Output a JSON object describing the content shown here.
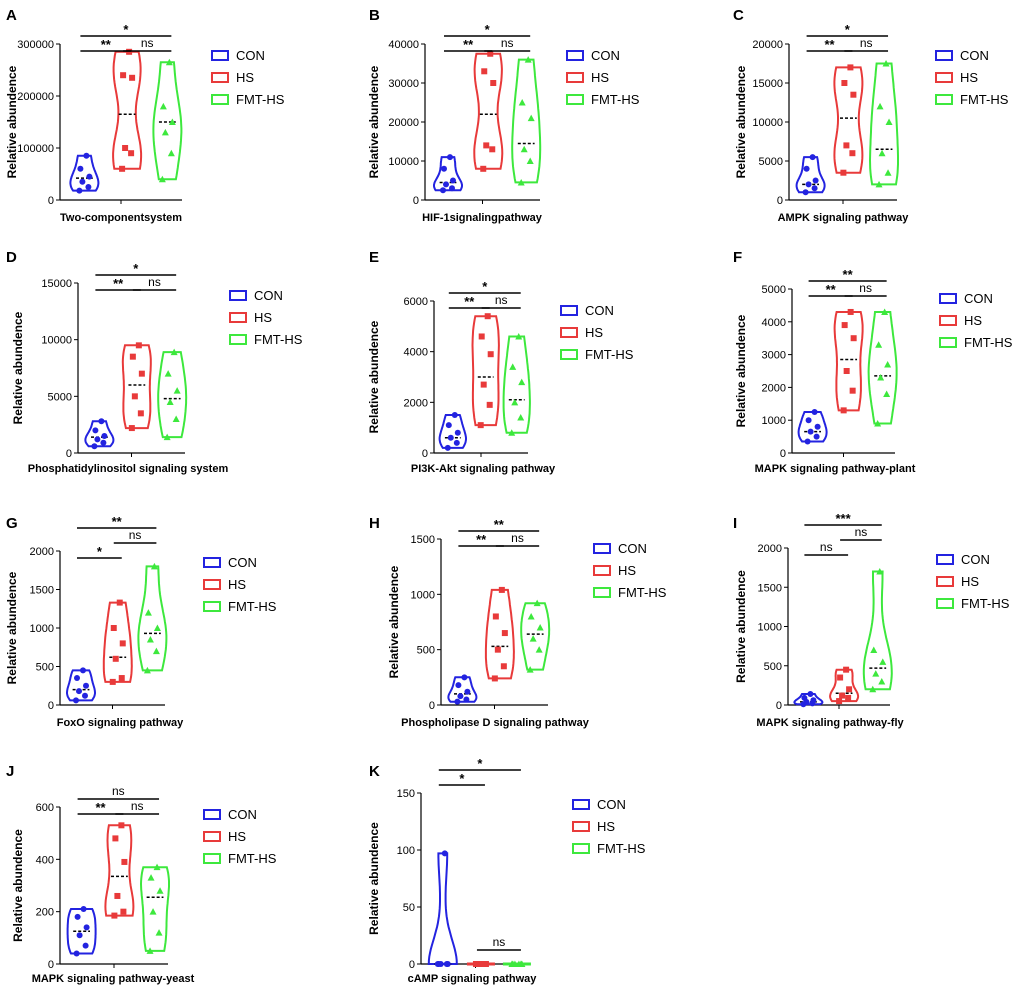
{
  "colors": {
    "CON": "#2323e0",
    "HS": "#e83a3a",
    "FMT-HS": "#3de83d"
  },
  "legend": [
    "CON",
    "HS",
    "FMT-HS"
  ],
  "ylabel": "Relative abundence",
  "chart_data": [
    {
      "panel": "A",
      "type": "violin",
      "xlabel": "Two-componentsystem",
      "ylim": [
        0,
        300000
      ],
      "yticks": [
        0,
        100000,
        200000,
        300000
      ],
      "groups": [
        {
          "name": "CON",
          "marker": "circle",
          "median": 42000,
          "values": [
            18000,
            25000,
            35000,
            45000,
            60000,
            85000
          ]
        },
        {
          "name": "HS",
          "marker": "square",
          "median": 165000,
          "values": [
            60000,
            90000,
            100000,
            235000,
            240000,
            285000
          ]
        },
        {
          "name": "FMT-HS",
          "marker": "triangle",
          "median": 150000,
          "values": [
            40000,
            90000,
            130000,
            150000,
            180000,
            265000
          ]
        }
      ],
      "brackets": [
        {
          "from": 0,
          "to": 2,
          "label": "*",
          "level": 1
        },
        {
          "from": 0,
          "to": 1,
          "label": "**",
          "level": 0
        },
        {
          "from": 1,
          "to": 2,
          "label": "ns",
          "level": 0
        }
      ]
    },
    {
      "panel": "B",
      "type": "violin",
      "xlabel": "HIF-1signalingpathway",
      "ylim": [
        0,
        40000
      ],
      "yticks": [
        0,
        10000,
        20000,
        30000,
        40000
      ],
      "groups": [
        {
          "name": "CON",
          "marker": "circle",
          "median": 4500,
          "values": [
            2500,
            3000,
            4000,
            5000,
            8000,
            11000
          ]
        },
        {
          "name": "HS",
          "marker": "square",
          "median": 22000,
          "values": [
            8000,
            13000,
            14000,
            30000,
            33000,
            37500
          ]
        },
        {
          "name": "FMT-HS",
          "marker": "triangle",
          "median": 14500,
          "values": [
            4500,
            10000,
            13000,
            21000,
            25000,
            36000
          ]
        }
      ],
      "brackets": [
        {
          "from": 0,
          "to": 2,
          "label": "*",
          "level": 1
        },
        {
          "from": 0,
          "to": 1,
          "label": "**",
          "level": 0
        },
        {
          "from": 1,
          "to": 2,
          "label": "ns",
          "level": 0
        }
      ]
    },
    {
      "panel": "C",
      "type": "violin",
      "xlabel": "AMPK signaling pathway",
      "ylim": [
        0,
        20000
      ],
      "yticks": [
        0,
        5000,
        10000,
        15000,
        20000
      ],
      "groups": [
        {
          "name": "CON",
          "marker": "circle",
          "median": 2000,
          "values": [
            1000,
            1500,
            2000,
            2500,
            4000,
            5500
          ]
        },
        {
          "name": "HS",
          "marker": "square",
          "median": 10500,
          "values": [
            3500,
            6000,
            7000,
            13500,
            15000,
            17000
          ]
        },
        {
          "name": "FMT-HS",
          "marker": "triangle",
          "median": 6500,
          "values": [
            2000,
            3500,
            6000,
            10000,
            12000,
            17500
          ]
        }
      ],
      "brackets": [
        {
          "from": 0,
          "to": 2,
          "label": "*",
          "level": 1
        },
        {
          "from": 0,
          "to": 1,
          "label": "**",
          "level": 0
        },
        {
          "from": 1,
          "to": 2,
          "label": "ns",
          "level": 0
        }
      ]
    },
    {
      "panel": "D",
      "type": "violin",
      "xlabel": "Phosphatidylinositol signaling system",
      "ylim": [
        0,
        15000
      ],
      "yticks": [
        0,
        5000,
        10000,
        15000
      ],
      "groups": [
        {
          "name": "CON",
          "marker": "circle",
          "median": 1400,
          "values": [
            600,
            900,
            1200,
            1500,
            2000,
            2800
          ]
        },
        {
          "name": "HS",
          "marker": "square",
          "median": 6000,
          "values": [
            2200,
            3500,
            5000,
            7000,
            8500,
            9500
          ]
        },
        {
          "name": "FMT-HS",
          "marker": "triangle",
          "median": 4800,
          "values": [
            1400,
            3000,
            4500,
            5500,
            7000,
            8900
          ]
        }
      ],
      "brackets": [
        {
          "from": 0,
          "to": 2,
          "label": "*",
          "level": 1
        },
        {
          "from": 0,
          "to": 1,
          "label": "**",
          "level": 0
        },
        {
          "from": 1,
          "to": 2,
          "label": "ns",
          "level": 0
        }
      ]
    },
    {
      "panel": "E",
      "type": "violin",
      "xlabel": "PI3K-Akt signaling pathway",
      "ylim": [
        0,
        6000
      ],
      "yticks": [
        0,
        2000,
        4000,
        6000
      ],
      "groups": [
        {
          "name": "CON",
          "marker": "circle",
          "median": 600,
          "values": [
            200,
            400,
            600,
            800,
            1100,
            1500
          ]
        },
        {
          "name": "HS",
          "marker": "square",
          "median": 3000,
          "values": [
            1100,
            1900,
            2700,
            3900,
            4600,
            5400
          ]
        },
        {
          "name": "FMT-HS",
          "marker": "triangle",
          "median": 2100,
          "values": [
            800,
            1400,
            2000,
            2800,
            3400,
            4600
          ]
        }
      ],
      "brackets": [
        {
          "from": 0,
          "to": 2,
          "label": "*",
          "level": 1
        },
        {
          "from": 0,
          "to": 1,
          "label": "**",
          "level": 0
        },
        {
          "from": 1,
          "to": 2,
          "label": "ns",
          "level": 0
        }
      ]
    },
    {
      "panel": "F",
      "type": "violin",
      "xlabel": "MAPK signaling pathway-plant",
      "ylim": [
        0,
        5000
      ],
      "yticks": [
        0,
        1000,
        2000,
        3000,
        4000,
        5000
      ],
      "groups": [
        {
          "name": "CON",
          "marker": "circle",
          "median": 650,
          "values": [
            350,
            500,
            650,
            800,
            1000,
            1250
          ]
        },
        {
          "name": "HS",
          "marker": "square",
          "median": 2850,
          "values": [
            1300,
            1900,
            2500,
            3500,
            3900,
            4300
          ]
        },
        {
          "name": "FMT-HS",
          "marker": "triangle",
          "median": 2350,
          "values": [
            900,
            1800,
            2300,
            2700,
            3300,
            4300
          ]
        }
      ],
      "brackets": [
        {
          "from": 0,
          "to": 2,
          "label": "**",
          "level": 1
        },
        {
          "from": 0,
          "to": 1,
          "label": "**",
          "level": 0
        },
        {
          "from": 1,
          "to": 2,
          "label": "ns",
          "level": 0
        }
      ]
    },
    {
      "panel": "G",
      "type": "violin",
      "xlabel": "FoxO signaling pathway",
      "ylim": [
        0,
        2000
      ],
      "yticks": [
        0,
        500,
        1000,
        1500,
        2000
      ],
      "groups": [
        {
          "name": "CON",
          "marker": "circle",
          "median": 200,
          "values": [
            60,
            120,
            180,
            250,
            350,
            450
          ]
        },
        {
          "name": "HS",
          "marker": "square",
          "median": 620,
          "values": [
            300,
            350,
            600,
            800,
            1000,
            1330
          ]
        },
        {
          "name": "FMT-HS",
          "marker": "triangle",
          "median": 930,
          "values": [
            450,
            700,
            850,
            1000,
            1200,
            1800
          ]
        }
      ],
      "brackets": [
        {
          "from": 0,
          "to": 2,
          "label": "**",
          "level": 2
        },
        {
          "from": 1,
          "to": 2,
          "label": "ns",
          "level": 1
        },
        {
          "from": 0,
          "to": 1,
          "label": "*",
          "level": 0
        }
      ]
    },
    {
      "panel": "H",
      "type": "violin",
      "xlabel": "Phospholipase D signaling pathway",
      "ylim": [
        0,
        1500
      ],
      "yticks": [
        0,
        500,
        1000,
        1500
      ],
      "groups": [
        {
          "name": "CON",
          "marker": "circle",
          "median": 100,
          "values": [
            30,
            50,
            80,
            120,
            180,
            250
          ]
        },
        {
          "name": "HS",
          "marker": "square",
          "median": 530,
          "values": [
            240,
            350,
            500,
            650,
            800,
            1040
          ]
        },
        {
          "name": "FMT-HS",
          "marker": "triangle",
          "median": 640,
          "values": [
            320,
            500,
            600,
            700,
            800,
            920
          ]
        }
      ],
      "brackets": [
        {
          "from": 0,
          "to": 2,
          "label": "**",
          "level": 1
        },
        {
          "from": 0,
          "to": 1,
          "label": "**",
          "level": 0
        },
        {
          "from": 1,
          "to": 2,
          "label": "ns",
          "level": 0
        }
      ]
    },
    {
      "panel": "I",
      "type": "violin",
      "xlabel": "MAPK signaling pathway-fly",
      "ylim": [
        0,
        2000
      ],
      "yticks": [
        0,
        500,
        1000,
        1500,
        2000
      ],
      "groups": [
        {
          "name": "CON",
          "marker": "circle",
          "median": 40,
          "values": [
            10,
            20,
            40,
            60,
            90,
            140
          ]
        },
        {
          "name": "HS",
          "marker": "square",
          "median": 150,
          "values": [
            50,
            90,
            120,
            200,
            350,
            450
          ]
        },
        {
          "name": "FMT-HS",
          "marker": "triangle",
          "median": 470,
          "values": [
            200,
            300,
            400,
            550,
            700,
            1700
          ]
        }
      ],
      "brackets": [
        {
          "from": 0,
          "to": 2,
          "label": "***",
          "level": 2
        },
        {
          "from": 1,
          "to": 2,
          "label": "ns",
          "level": 1
        },
        {
          "from": 0,
          "to": 1,
          "label": "ns",
          "level": 0
        }
      ]
    },
    {
      "panel": "J",
      "type": "violin",
      "xlabel": "MAPK signaling pathway-yeast",
      "ylim": [
        0,
        600
      ],
      "yticks": [
        0,
        200,
        400,
        600
      ],
      "groups": [
        {
          "name": "CON",
          "marker": "circle",
          "median": 125,
          "values": [
            40,
            70,
            110,
            140,
            180,
            210
          ]
        },
        {
          "name": "HS",
          "marker": "square",
          "median": 335,
          "values": [
            185,
            200,
            260,
            390,
            480,
            530
          ]
        },
        {
          "name": "FMT-HS",
          "marker": "triangle",
          "median": 255,
          "values": [
            50,
            120,
            200,
            280,
            330,
            370
          ]
        }
      ],
      "brackets": [
        {
          "from": 0,
          "to": 2,
          "label": "ns",
          "level": 1
        },
        {
          "from": 0,
          "to": 1,
          "label": "**",
          "level": 0
        },
        {
          "from": 1,
          "to": 2,
          "label": "ns",
          "level": 0
        }
      ]
    },
    {
      "panel": "K",
      "type": "violin",
      "xlabel": "cAMP signaling pathway",
      "ylim": [
        0,
        150
      ],
      "yticks": [
        0,
        50,
        100,
        150
      ],
      "groups": [
        {
          "name": "CON",
          "marker": "circle",
          "median": 0,
          "values": [
            0,
            0,
            0,
            0,
            0,
            97
          ]
        },
        {
          "name": "HS",
          "marker": "square",
          "median": 0,
          "values": [
            0,
            0,
            0,
            0,
            0,
            0
          ]
        },
        {
          "name": "FMT-HS",
          "marker": "triangle",
          "median": 0,
          "values": [
            0,
            0,
            0,
            0,
            0,
            0
          ]
        }
      ],
      "brackets": [
        {
          "from": 0,
          "to": 2,
          "label": "*",
          "level": 2
        },
        {
          "from": 0,
          "to": 1,
          "label": "*",
          "level": 1
        },
        {
          "from": 1,
          "to": 2,
          "label": "ns",
          "level": "low"
        }
      ]
    }
  ]
}
